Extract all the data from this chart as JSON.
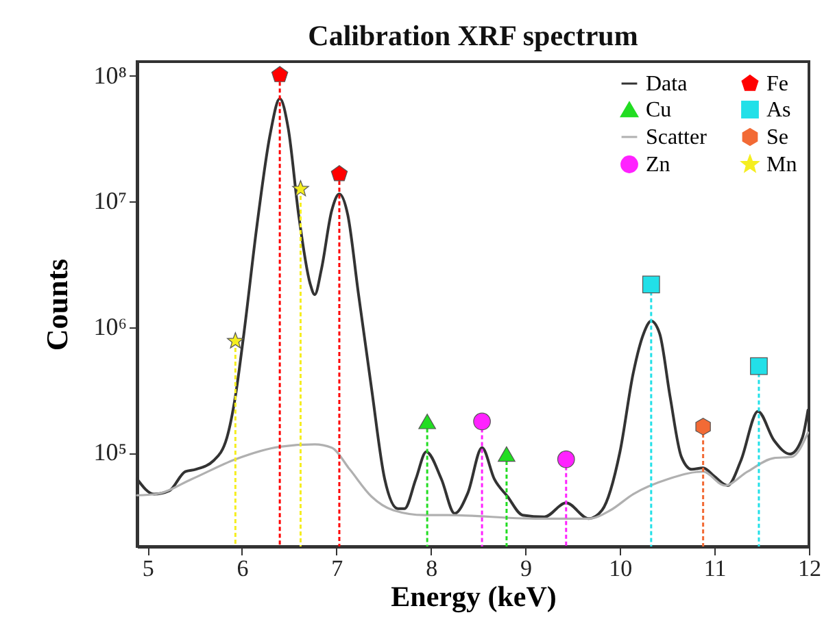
{
  "chart_data": {
    "type": "line",
    "title": "Calibration XRF spectrum",
    "xlabel": "Energy (keV)",
    "ylabel": "Counts",
    "xlim": [
      4.89,
      12
    ],
    "xticks": [
      5,
      6,
      7,
      8,
      9,
      10,
      11,
      12
    ],
    "ylim": [
      18000,
      130000000
    ],
    "log": "y",
    "yticks": [
      {
        "value": 100000,
        "label": "10⁵"
      },
      {
        "value": 1000000,
        "label": "10⁶"
      },
      {
        "value": 10000000,
        "label": "10⁷"
      },
      {
        "value": 100000000,
        "label": "10⁸"
      }
    ],
    "grid": false,
    "legend": "top right",
    "series": [
      {
        "name": "Data",
        "color": "#333333",
        "marker": "none",
        "x": [
          4.89,
          5.07,
          5.23,
          5.4,
          5.51,
          5.7,
          5.84,
          5.93,
          6.02,
          6.16,
          6.3,
          6.4,
          6.49,
          6.6,
          6.72,
          6.77,
          6.84,
          6.95,
          7.03,
          7.12,
          7.23,
          7.37,
          7.51,
          7.65,
          7.72,
          7.84,
          7.95,
          8.11,
          8.25,
          8.39,
          8.54,
          8.67,
          8.81,
          8.97,
          9.2,
          9.43,
          9.67,
          9.81,
          10.0,
          10.14,
          10.25,
          10.33,
          10.42,
          10.53,
          10.65,
          10.76,
          10.88,
          11.0,
          11.14,
          11.28,
          11.46,
          11.63,
          11.8,
          11.93,
          11.99
        ],
        "values": [
          62000,
          47000,
          50000,
          71000,
          74000,
          87000,
          132000,
          282000,
          890000,
          6600000,
          35000000,
          66000000,
          38000000,
          7800000,
          2240000,
          1820000,
          2880000,
          8500000,
          11500000,
          7800000,
          1900000,
          330000,
          62000,
          36000,
          36000,
          62000,
          102000,
          62000,
          33000,
          48000,
          110000,
          62000,
          45000,
          32000,
          31000,
          40000,
          30000,
          35000,
          102000,
          430000,
          890000,
          1120000,
          890000,
          282000,
          93000,
          74000,
          76000,
          65000,
          55000,
          87000,
          214000,
          126000,
          98000,
          132000,
          219000
        ]
      },
      {
        "name": "Scatter",
        "color": "#b0b0b0",
        "marker": "none",
        "x": [
          4.89,
          5.09,
          5.47,
          5.93,
          6.4,
          6.77,
          6.95,
          7.14,
          7.37,
          7.6,
          7.93,
          8.18,
          9.11,
          9.67,
          9.9,
          10.14,
          10.51,
          10.88,
          11.11,
          11.35,
          11.63,
          11.82,
          11.99
        ],
        "values": [
          46000,
          47000,
          62000,
          89000,
          112000,
          117000,
          110000,
          74000,
          45000,
          35000,
          32000,
          32000,
          30000,
          30000,
          35000,
          47000,
          62000,
          71000,
          55000,
          71000,
          91000,
          93000,
          145000
        ]
      },
      {
        "name": "Fe",
        "type": "lollipop",
        "color": "#ff0000",
        "line_style": "dashed",
        "x": [
          6.4,
          7.03
        ],
        "values": [
          102000000,
          16600000
        ]
      },
      {
        "name": "Se",
        "type": "lollipop",
        "color": "#f26a35",
        "line_style": "dashed",
        "x": [
          10.88
        ],
        "values": [
          162000
        ]
      },
      {
        "name": "Cu",
        "type": "lollipop",
        "color": "#22dd22",
        "marker": "triangle",
        "line_style": "dashed",
        "x": [
          7.96,
          8.8
        ],
        "values": [
          178000,
          98000
        ]
      },
      {
        "name": "Zn",
        "type": "lollipop",
        "color": "#ff22ff",
        "marker": "circle",
        "line_style": "dashed",
        "x": [
          8.54,
          9.43
        ],
        "values": [
          178000,
          89000
        ]
      },
      {
        "name": "As",
        "type": "lollipop",
        "color": "#22e0e8",
        "marker": "square",
        "line_style": "dashed",
        "x": [
          10.33,
          11.47
        ],
        "values": [
          2190000,
          490000
        ]
      },
      {
        "name": "Mn",
        "type": "lollipop",
        "color": "#f5ee20",
        "marker": "star",
        "line_style": "dashed",
        "x": [
          5.93,
          6.62
        ],
        "values": [
          776000,
          12600000
        ]
      }
    ]
  }
}
